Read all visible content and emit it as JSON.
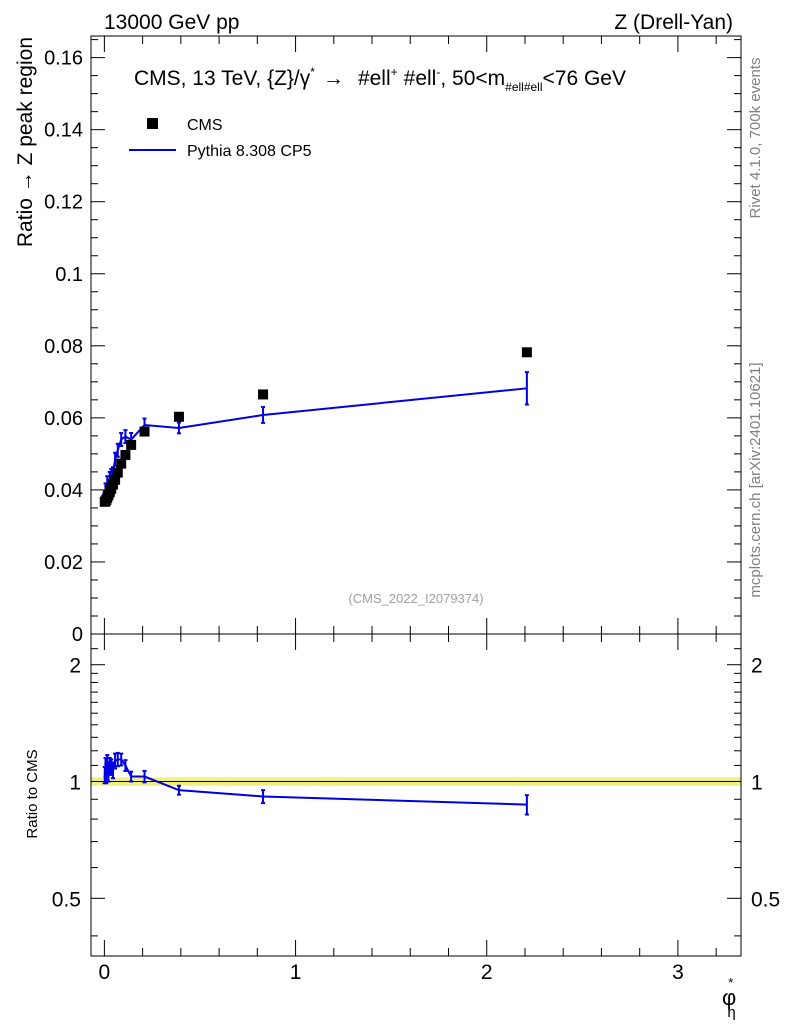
{
  "header": {
    "left": "13000 GeV pp",
    "right": "Z (Drell-Yan)"
  },
  "side_labels": {
    "rivet": "Rivet 4.1.0,  700k events",
    "mcplots": "mcplots.cern.ch [arXiv:2401.10621]"
  },
  "chart_data": [
    {
      "type": "scatter",
      "panel": "main",
      "title": "CMS, 13 TeV, {Z}/γ*  →  #ell+ #ell-, 50<m#ell#ell<76 GeV",
      "title_parts": {
        "main": "CMS, 13 TeV, {Z}/γ",
        "sup_star": "*",
        "arrow": "→",
        "ell1": "#ell",
        "sup_plus": "+",
        "ell2": "#ell",
        "sup_minus": "-",
        "mass_pre": ", 50<m",
        "mass_sub": "#ell#ell",
        "mass_post": "<76 GeV"
      },
      "watermark": "(CMS_2022_I2079374)",
      "xlabel": "",
      "xlabel_main": "φ",
      "xlabel_sup": "*",
      "xlabel_sub": "η",
      "ylabel": "Ratio → Z peak region",
      "xlim": [
        -0.07,
        3.33
      ],
      "ylim": [
        0,
        0.166
      ],
      "yticks": [
        {
          "v": 0,
          "label": "0"
        },
        {
          "v": 0.02,
          "label": "0.02"
        },
        {
          "v": 0.04,
          "label": "0.04"
        },
        {
          "v": 0.06,
          "label": "0.06"
        },
        {
          "v": 0.08,
          "label": "0.08"
        },
        {
          "v": 0.1,
          "label": "0.1"
        },
        {
          "v": 0.12,
          "label": "0.12"
        },
        {
          "v": 0.14,
          "label": "0.14"
        },
        {
          "v": 0.16,
          "label": "0.16"
        }
      ],
      "legend_position": "top-left",
      "series": [
        {
          "name": "CMS",
          "style": "markers",
          "color": "#000000",
          "x": [
            0.002,
            0.006,
            0.01,
            0.015,
            0.021,
            0.028,
            0.036,
            0.045,
            0.056,
            0.07,
            0.088,
            0.11,
            0.14,
            0.21,
            0.39,
            0.83,
            2.21
          ],
          "y": [
            0.0367,
            0.0368,
            0.0372,
            0.0378,
            0.0385,
            0.0393,
            0.0403,
            0.0415,
            0.0428,
            0.0448,
            0.0473,
            0.0497,
            0.0525,
            0.0562,
            0.0603,
            0.0665,
            0.0782
          ]
        },
        {
          "name": "Pythia 8.308 CP5",
          "style": "line",
          "color": "#0000e0",
          "x": [
            0.002,
            0.006,
            0.01,
            0.015,
            0.021,
            0.028,
            0.036,
            0.045,
            0.056,
            0.07,
            0.088,
            0.11,
            0.14,
            0.21,
            0.39,
            0.83,
            2.21
          ],
          "y": [
            0.038,
            0.04,
            0.0392,
            0.042,
            0.041,
            0.0432,
            0.044,
            0.0445,
            0.0485,
            0.051,
            0.054,
            0.0548,
            0.054,
            0.058,
            0.0572,
            0.0608,
            0.0682
          ],
          "err": [
            0.0015,
            0.0018,
            0.0018,
            0.0018,
            0.0018,
            0.0018,
            0.0018,
            0.0018,
            0.0018,
            0.0018,
            0.0018,
            0.0018,
            0.0018,
            0.0018,
            0.0015,
            0.0022,
            0.0045
          ]
        }
      ]
    },
    {
      "type": "line",
      "panel": "ratio",
      "xlabel": "",
      "ylabel": "Ratio to CMS",
      "xlim": [
        -0.07,
        3.33
      ],
      "ylim": [
        0.355,
        2.4
      ],
      "log_y": true,
      "xticks": [
        {
          "v": 0,
          "label": "0"
        },
        {
          "v": 1,
          "label": "1"
        },
        {
          "v": 2,
          "label": "2"
        },
        {
          "v": 3,
          "label": "3"
        }
      ],
      "yticks": [
        {
          "v": 0.5,
          "label": "0.5"
        },
        {
          "v": 1,
          "label": "1"
        },
        {
          "v": 2,
          "label": "2"
        }
      ],
      "band": {
        "lo": 0.975,
        "hi": 1.025,
        "color": "#f0f080"
      },
      "series": [
        {
          "name": "Pythia 8.308 CP5",
          "color": "#0000e0",
          "x": [
            0.002,
            0.006,
            0.01,
            0.015,
            0.021,
            0.028,
            0.036,
            0.045,
            0.056,
            0.07,
            0.088,
            0.11,
            0.14,
            0.21,
            0.39,
            0.83,
            2.21
          ],
          "y": [
            1.04,
            1.09,
            1.05,
            1.11,
            1.06,
            1.1,
            1.09,
            1.07,
            1.13,
            1.14,
            1.14,
            1.1,
            1.03,
            1.03,
            0.95,
            0.915,
            0.872
          ],
          "err": [
            0.05,
            0.06,
            0.06,
            0.06,
            0.06,
            0.05,
            0.05,
            0.05,
            0.05,
            0.045,
            0.04,
            0.035,
            0.03,
            0.035,
            0.025,
            0.035,
            0.05
          ]
        }
      ]
    }
  ]
}
